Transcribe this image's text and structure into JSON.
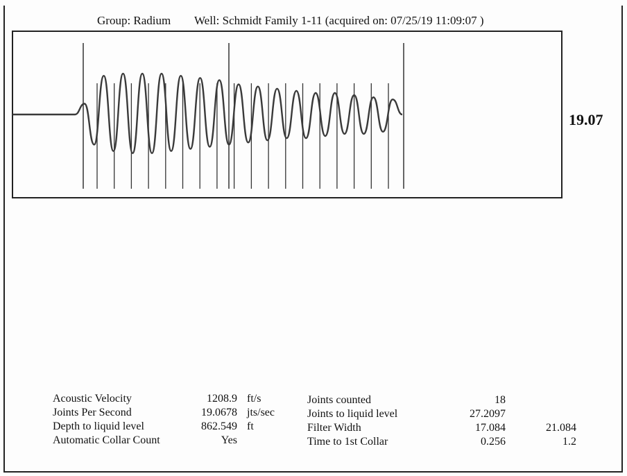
{
  "header": {
    "group": "Group: Radium",
    "well": "Well: Schmidt Family 1-11 (acquired on: 07/25/19 11:09:07 )"
  },
  "reading": "19.07",
  "stats_left": [
    {
      "label": "Acoustic Velocity",
      "value": "1208.9",
      "unit": "ft/s"
    },
    {
      "label": "Joints Per Second",
      "value": "19.0678",
      "unit": "jts/sec"
    },
    {
      "label": "Depth to liquid level",
      "value": "862.549",
      "unit": "ft"
    },
    {
      "label": "Automatic Collar Count",
      "value": "Yes",
      "unit": ""
    }
  ],
  "stats_right": [
    {
      "label": "Joints counted",
      "value": "18",
      "value2": ""
    },
    {
      "label": "Joints to liquid level",
      "value": "27.2097",
      "value2": ""
    },
    {
      "label": "Filter Width",
      "value": "17.084",
      "value2": "21.084"
    },
    {
      "label": "Time to 1st Collar",
      "value": "0.256",
      "value2": "1.2"
    }
  ],
  "chart_data": {
    "type": "line",
    "title": "",
    "xlabel": "",
    "ylabel": "",
    "grid": false,
    "series": [
      {
        "values": [
          0,
          0.25,
          -0.7,
          0.9,
          -0.85,
          0.95,
          -0.9,
          0.95,
          -0.9,
          0.95,
          -0.85,
          0.9,
          -0.8,
          0.85,
          -0.75,
          0.8,
          -0.7,
          0.7,
          -0.65,
          0.65,
          -0.6,
          0.6,
          -0.55,
          0.55,
          -0.55,
          0.5,
          -0.5,
          0.5,
          -0.45,
          0.45,
          -0.45,
          0.4,
          -0.4,
          0.35,
          0
        ]
      }
    ],
    "collar_markers_count": 18
  }
}
